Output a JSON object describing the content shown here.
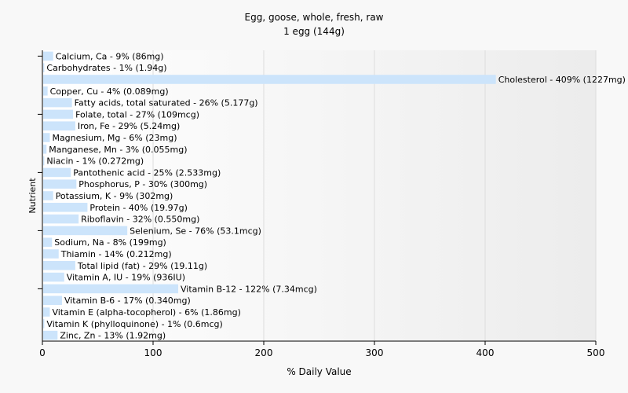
{
  "chart_data": {
    "type": "bar",
    "orientation": "horizontal",
    "title": "Egg, goose, whole, fresh, raw",
    "subtitle": "1 egg (144g)",
    "xlabel": "% Daily Value",
    "ylabel": "Nutrient",
    "xlim": [
      0,
      500
    ],
    "xticks": [
      0,
      100,
      200,
      300,
      400,
      500
    ],
    "grid": true,
    "legend": "none",
    "bar_color": "#cce4fb",
    "categories": [
      "Calcium, Ca",
      "Carbohydrates",
      "Cholesterol",
      "Copper, Cu",
      "Fatty acids, total saturated",
      "Folate, total",
      "Iron, Fe",
      "Magnesium, Mg",
      "Manganese, Mn",
      "Niacin",
      "Pantothenic acid",
      "Phosphorus, P",
      "Potassium, K",
      "Protein",
      "Riboflavin",
      "Selenium, Se",
      "Sodium, Na",
      "Thiamin",
      "Total lipid (fat)",
      "Vitamin A, IU",
      "Vitamin B-12",
      "Vitamin B-6",
      "Vitamin E (alpha-tocopherol)",
      "Vitamin K (phylloquinone)",
      "Zinc, Zn"
    ],
    "values": [
      9,
      1,
      409,
      4,
      26,
      27,
      29,
      6,
      3,
      1,
      25,
      30,
      9,
      40,
      32,
      76,
      8,
      14,
      29,
      19,
      122,
      17,
      6,
      1,
      13
    ],
    "labels": [
      "Calcium, Ca - 9% (86mg)",
      "Carbohydrates - 1% (1.94g)",
      "Cholesterol - 409% (1227mg)",
      "Copper, Cu - 4% (0.089mg)",
      "Fatty acids, total saturated - 26% (5.177g)",
      "Folate, total - 27% (109mcg)",
      "Iron, Fe - 29% (5.24mg)",
      "Magnesium, Mg - 6% (23mg)",
      "Manganese, Mn - 3% (0.055mg)",
      "Niacin - 1% (0.272mg)",
      "Pantothenic acid - 25% (2.533mg)",
      "Phosphorus, P - 30% (300mg)",
      "Potassium, K - 9% (302mg)",
      "Protein - 40% (19.97g)",
      "Riboflavin - 32% (0.550mg)",
      "Selenium, Se - 76% (53.1mcg)",
      "Sodium, Na - 8% (199mg)",
      "Thiamin - 14% (0.212mg)",
      "Total lipid (fat) - 29% (19.11g)",
      "Vitamin A, IU - 19% (936IU)",
      "Vitamin B-12 - 122% (7.34mcg)",
      "Vitamin B-6 - 17% (0.340mg)",
      "Vitamin E (alpha-tocopherol) - 6% (1.86mg)",
      "Vitamin K (phylloquinone) - 1% (0.6mcg)",
      "Zinc, Zn - 13% (1.92mg)"
    ]
  }
}
